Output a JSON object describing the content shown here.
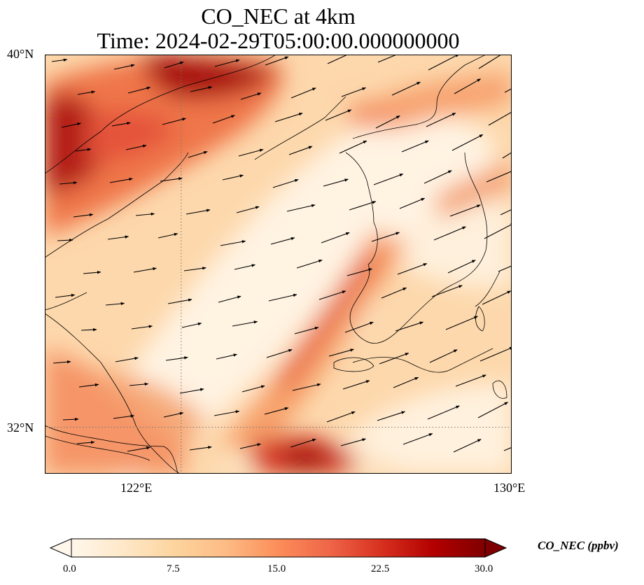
{
  "title": {
    "line1": "CO_NEC at 4km",
    "line2": "Time: 2024-02-29T05:00:00.000000000"
  },
  "map": {
    "projection": "PlateCarree",
    "extent": {
      "lon": [
        118.7,
        130.0
      ],
      "lat": [
        31.0,
        40.0
      ]
    },
    "lat_ticks": [
      "40°N",
      "32°N"
    ],
    "lon_ticks": [
      "122°E",
      "130°E"
    ],
    "gridlines": {
      "lon": [
        122
      ],
      "lat": [
        32
      ],
      "style": "dotted"
    },
    "field": {
      "name": "CO_NEC",
      "colormap": "OrRd",
      "high_concentration_areas": [
        "Bohai Sea / Liaoning coast (north-west)",
        "Band from Yellow Sea toward western Korea",
        "South Yellow Sea (bottom centre)",
        "Jiangsu coast (south-west)"
      ]
    },
    "wind_vectors": {
      "present": true,
      "direction": "westerly to south-westerly"
    }
  },
  "colorbar": {
    "label": "CO_NEC (ppbv)",
    "ticks": [
      "0.0",
      "7.5",
      "15.0",
      "22.5",
      "30.0"
    ],
    "min": 0,
    "max": 30,
    "extend": "both",
    "colors": [
      "#fff7ec",
      "#fee8c8",
      "#fdd49e",
      "#fdbb84",
      "#fc8d59",
      "#ef6548",
      "#d7301f",
      "#b30000",
      "#7f0000"
    ]
  }
}
